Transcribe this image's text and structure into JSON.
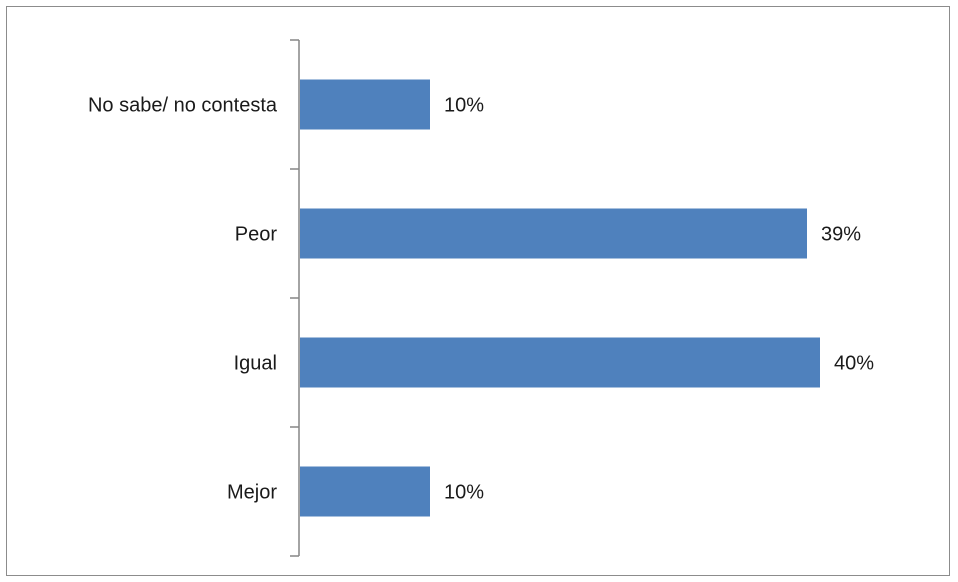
{
  "chart_data": {
    "type": "bar",
    "orientation": "horizontal",
    "categories": [
      "Mejor",
      "Igual",
      "Peor",
      "No sabe/ no contesta"
    ],
    "values": [
      10,
      40,
      39,
      10
    ],
    "value_labels": [
      "10%",
      "40%",
      "39%",
      "10%"
    ],
    "unit": "%",
    "title": "",
    "xlabel": "",
    "ylabel": "",
    "xlim": [
      0,
      45
    ],
    "grid": false,
    "legend": "none",
    "bar_color": "#4F81BD"
  }
}
